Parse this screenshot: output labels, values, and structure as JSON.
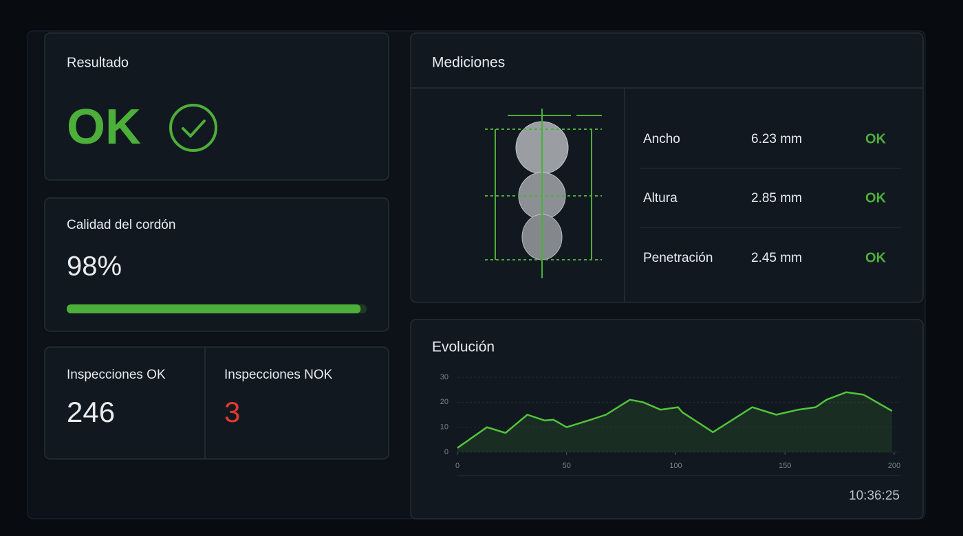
{
  "result": {
    "title": "Resultado",
    "status": "OK"
  },
  "quality": {
    "title": "Calidad del cordón",
    "value": 98,
    "value_label": "98%"
  },
  "inspections": {
    "ok_title": "Inspecciones OK",
    "ok_count": "246",
    "nok_title": "Inspecciones NOK",
    "nok_count": "3"
  },
  "measurements": {
    "title": "Mediciones",
    "rows": [
      {
        "name": "Ancho",
        "value": "6.23 mm",
        "status": "OK"
      },
      {
        "name": "Altura",
        "value": "2.85 mm",
        "status": "OK"
      },
      {
        "name": "Penetración",
        "value": "2.45 mm",
        "status": "OK"
      }
    ]
  },
  "evolution": {
    "title": "Evolución",
    "time": "10:36:25",
    "chart": {
      "type": "line",
      "color": "#52c43a",
      "grid": true,
      "x": [
        0,
        13.5,
        22,
        32,
        40,
        44,
        50,
        61,
        68,
        79,
        85,
        93,
        101,
        103,
        117,
        126,
        135,
        146,
        156,
        164,
        169,
        178,
        186,
        199
      ],
      "values": [
        1.7,
        10,
        7.7,
        15,
        12.7,
        13,
        10,
        13,
        15,
        21,
        20,
        17,
        18,
        16,
        8,
        13,
        18,
        15,
        17,
        18,
        21,
        24,
        23,
        16.5
      ],
      "xlim": [
        0,
        200
      ],
      "ylim": [
        0,
        30
      ],
      "xticks": [
        0,
        50,
        100,
        150,
        200
      ],
      "yticks": [
        0,
        10,
        20,
        30
      ]
    }
  }
}
